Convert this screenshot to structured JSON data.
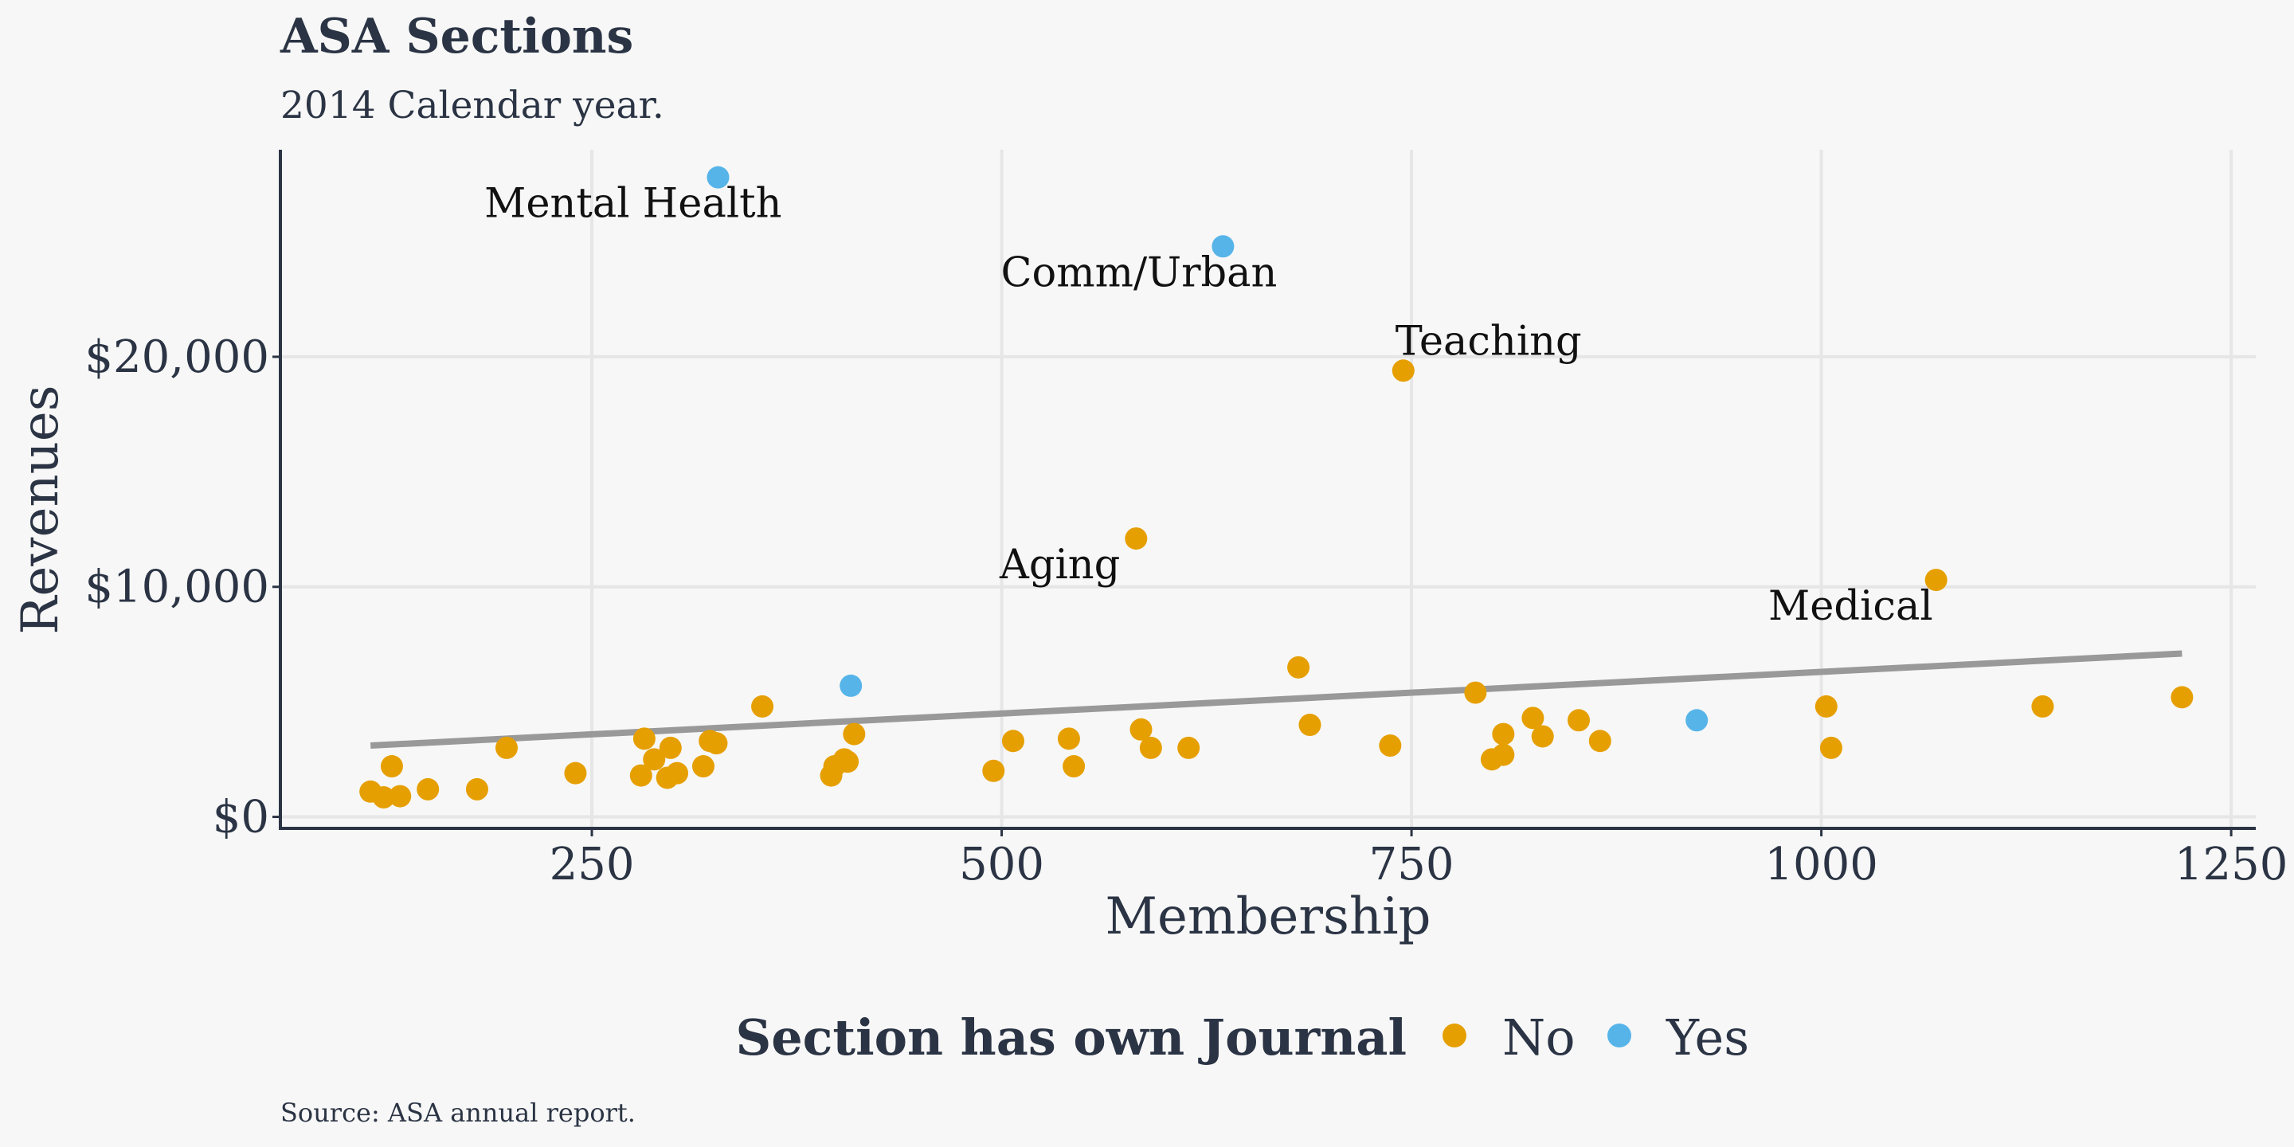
{
  "colors": {
    "background": "#f7f7f7",
    "text": "#2b3444",
    "no": "#e69f00",
    "yes": "#56b4e9",
    "fit_line": "#999999",
    "grid": "#e6e6e6"
  },
  "chart_data": {
    "type": "scatter",
    "title": "ASA Sections",
    "subtitle": "2014 Calendar year.",
    "xlabel": "Membership",
    "ylabel": "Revenues",
    "xlim": [
      60,
      1265
    ],
    "ylim": [
      -500,
      29000
    ],
    "x_ticks": [
      250,
      500,
      750,
      1000,
      1250
    ],
    "x_tick_labels": [
      "250",
      "500",
      "750",
      "1000",
      "1250"
    ],
    "y_ticks": [
      0,
      10000,
      20000
    ],
    "y_tick_labels": [
      "$0",
      "$10,000",
      "$20,000"
    ],
    "grid": true,
    "legend": {
      "title": "Section has own Journal",
      "position": "bottom",
      "entries": [
        {
          "label": "No",
          "color": "#e69f00"
        },
        {
          "label": "Yes",
          "color": "#56b4e9"
        }
      ]
    },
    "caption": "Source: ASA annual report.",
    "trend_line": {
      "x": [
        115,
        1220
      ],
      "y": [
        3100,
        7100
      ]
    },
    "series": [
      {
        "name": "No",
        "color": "#e69f00",
        "points": [
          [
            115,
            1100
          ],
          [
            123,
            850
          ],
          [
            128,
            2200
          ],
          [
            133,
            900
          ],
          [
            150,
            1200
          ],
          [
            180,
            1200
          ],
          [
            198,
            3000
          ],
          [
            240,
            1900
          ],
          [
            282,
            3400
          ],
          [
            280,
            1800
          ],
          [
            288,
            2500
          ],
          [
            296,
            1700
          ],
          [
            298,
            3000
          ],
          [
            302,
            1900
          ],
          [
            318,
            2200
          ],
          [
            322,
            3300
          ],
          [
            326,
            3200
          ],
          [
            354,
            4800
          ],
          [
            396,
            1800
          ],
          [
            398,
            2200
          ],
          [
            404,
            2500
          ],
          [
            406,
            2400
          ],
          [
            410,
            3600
          ],
          [
            495,
            2000
          ],
          [
            507,
            3300
          ],
          [
            541,
            3400
          ],
          [
            544,
            2200
          ],
          [
            585,
            3800
          ],
          [
            582,
            12100
          ],
          [
            591,
            3000
          ],
          [
            614,
            3000
          ],
          [
            681,
            6500
          ],
          [
            688,
            4000
          ],
          [
            737,
            3100
          ],
          [
            745,
            19400
          ],
          [
            789,
            5400
          ],
          [
            799,
            2500
          ],
          [
            806,
            2700
          ],
          [
            806,
            3600
          ],
          [
            824,
            4300
          ],
          [
            830,
            3500
          ],
          [
            852,
            4200
          ],
          [
            865,
            3300
          ],
          [
            1003,
            4800
          ],
          [
            1006,
            3000
          ],
          [
            1070,
            10300
          ],
          [
            1135,
            4800
          ],
          [
            1220,
            5200
          ]
        ],
        "labels": [
          {
            "text": "Teaching",
            "x": 745,
            "y": 19400
          },
          {
            "text": "Aging",
            "x": 582,
            "y": 12100
          },
          {
            "text": "Medical",
            "x": 1070,
            "y": 10300
          }
        ]
      },
      {
        "name": "Yes",
        "color": "#56b4e9",
        "points": [
          [
            327,
            27800
          ],
          [
            635,
            24800
          ],
          [
            408,
            5700
          ],
          [
            924,
            4200
          ]
        ],
        "labels": [
          {
            "text": "Mental Health",
            "x": 327,
            "y": 27800
          },
          {
            "text": "Comm/Urban",
            "x": 635,
            "y": 24800
          }
        ]
      }
    ]
  }
}
